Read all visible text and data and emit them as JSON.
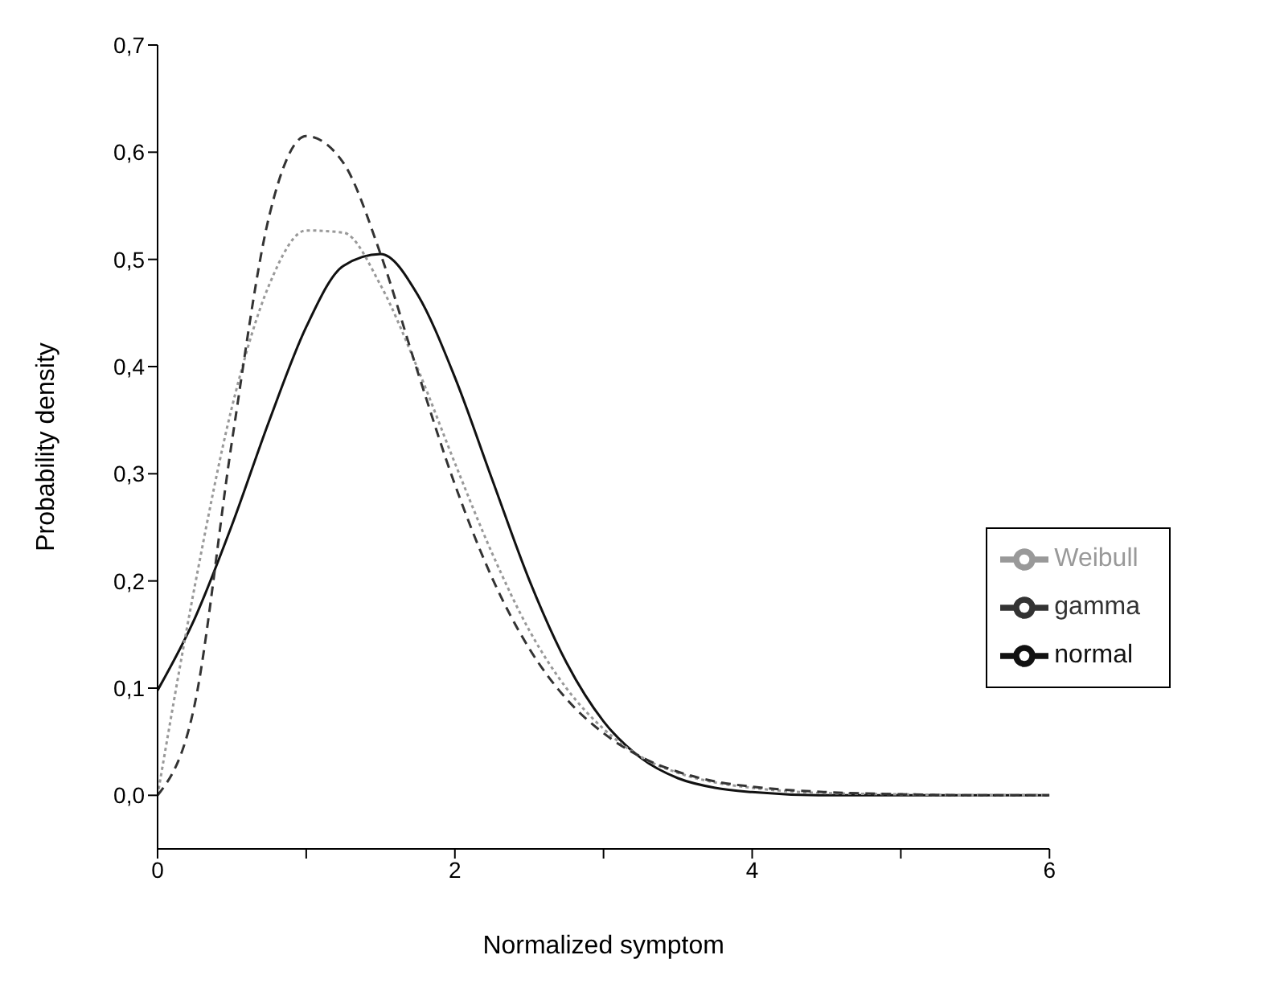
{
  "chart_data": {
    "type": "line",
    "xlabel": "Normalized symptom",
    "ylabel": "Probability density",
    "x": [
      0,
      0.25,
      0.5,
      0.75,
      1,
      1.25,
      1.5,
      1.75,
      2,
      2.25,
      2.5,
      2.75,
      3,
      3.25,
      3.5,
      3.75,
      4,
      4.5,
      5,
      5.5,
      6
    ],
    "series": [
      {
        "name": "normal",
        "color": "#111111",
        "line_style": "solid",
        "values": [
          0.098,
          0.165,
          0.252,
          0.349,
          0.437,
          0.494,
          0.505,
          0.467,
          0.39,
          0.295,
          0.201,
          0.124,
          0.069,
          0.035,
          0.016,
          0.007,
          0.003,
          0.0,
          0.0,
          0.0,
          0.0
        ]
      },
      {
        "name": "Weibull",
        "color": "#999999",
        "line_style": "dotted",
        "values": [
          0.0,
          0.195,
          0.362,
          0.476,
          0.527,
          0.525,
          0.476,
          0.398,
          0.31,
          0.226,
          0.154,
          0.1,
          0.062,
          0.036,
          0.021,
          0.012,
          0.007,
          0.002,
          0.001,
          0.0,
          0.0
        ]
      },
      {
        "name": "gamma",
        "color": "#333333",
        "line_style": "dashed",
        "values": [
          0.0,
          0.085,
          0.33,
          0.54,
          0.615,
          0.59,
          0.505,
          0.395,
          0.29,
          0.203,
          0.137,
          0.09,
          0.058,
          0.036,
          0.022,
          0.013,
          0.008,
          0.003,
          0.001,
          0.0,
          0.0
        ]
      }
    ],
    "xlim": [
      0,
      6
    ],
    "xticks": [
      0,
      {
        "value": 1,
        "label": null
      },
      2,
      {
        "value": 3,
        "label": null
      },
      4,
      {
        "value": 5,
        "label": null
      },
      6
    ],
    "ylim": [
      -0.05,
      0.7
    ],
    "yticks": [
      {
        "value": 0,
        "label": "0,0"
      },
      {
        "value": 0.1,
        "label": "0,1"
      },
      {
        "value": 0.2,
        "label": "0,2"
      },
      {
        "value": 0.3,
        "label": "0,3"
      },
      {
        "value": 0.4,
        "label": "0,4"
      },
      {
        "value": 0.5,
        "label": "0,5"
      },
      {
        "value": 0.6,
        "label": "0,6"
      },
      {
        "value": 0.7,
        "label": "0,7"
      }
    ],
    "grid": false,
    "legend": "right",
    "marker": "none"
  }
}
